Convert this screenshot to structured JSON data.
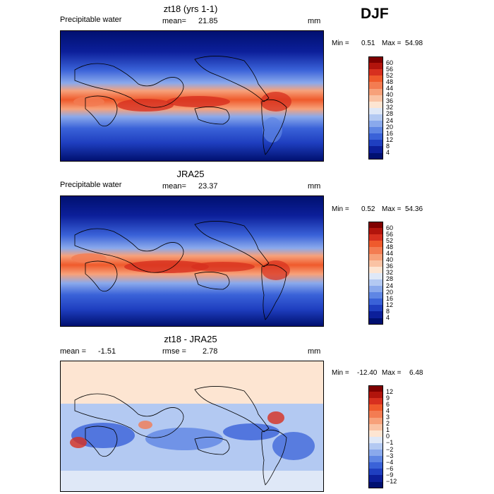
{
  "season": "DJF",
  "panels": [
    {
      "title": "zt18 (yrs 1-1)",
      "left_label": "Precipitable water",
      "mean_label": "mean=",
      "mean_value": "21.85",
      "units": "mm",
      "min_label": "Min =",
      "min_value": "0.51",
      "max_label": "Max =",
      "max_value": "54.98"
    },
    {
      "title": "JRA25",
      "left_label": "Precipitable water",
      "mean_label": "mean=",
      "mean_value": "23.37",
      "units": "mm",
      "min_label": "Min =",
      "min_value": "0.52",
      "max_label": "Max =",
      "max_value": "54.36"
    },
    {
      "title": "zt18 - JRA25",
      "left_label": "mean =",
      "left_value": "-1.51",
      "rmse_label": "rmse =",
      "rmse_value": "2.78",
      "units": "mm",
      "min_label": "Min =",
      "min_value": "-12.40",
      "max_label": "Max =",
      "max_value": "6.48"
    }
  ],
  "colorbars": {
    "pw": {
      "labels": [
        "60",
        "56",
        "52",
        "48",
        "44",
        "40",
        "36",
        "32",
        "28",
        "24",
        "20",
        "16",
        "12",
        "8",
        "4"
      ],
      "colors": [
        "#7f0000",
        "#b2140c",
        "#d7301f",
        "#ef5a2c",
        "#f37c52",
        "#f7a17a",
        "#fac3a4",
        "#fde5d2",
        "#dfe8f7",
        "#b3c9f2",
        "#8aa9ec",
        "#5f86e4",
        "#3a62d8",
        "#1f3fc0",
        "#0c1f9a",
        "#001070"
      ]
    },
    "diff": {
      "labels": [
        "12",
        "9",
        "6",
        "4",
        "3",
        "2",
        "1",
        "0",
        "−1",
        "−2",
        "−3",
        "−4",
        "−6",
        "−9",
        "−12"
      ],
      "colors": [
        "#7f0000",
        "#b2140c",
        "#d7301f",
        "#ef5a2c",
        "#f37c52",
        "#f7a17a",
        "#fac3a4",
        "#fde5d2",
        "#dfe8f7",
        "#b3c9f2",
        "#8aa9ec",
        "#5f86e4",
        "#3a62d8",
        "#1f3fc0",
        "#0c1f9a",
        "#001070"
      ]
    }
  },
  "chart_data": [
    {
      "type": "heatmap",
      "title": "zt18 (yrs 1-1)",
      "subtitle": "Precipitable water",
      "units": "mm",
      "mean": 21.85,
      "min": 0.51,
      "max": 54.98,
      "levels": [
        4,
        8,
        12,
        16,
        20,
        24,
        28,
        32,
        36,
        40,
        44,
        48,
        52,
        56,
        60
      ],
      "season": "DJF"
    },
    {
      "type": "heatmap",
      "title": "JRA25",
      "subtitle": "Precipitable water",
      "units": "mm",
      "mean": 23.37,
      "min": 0.52,
      "max": 54.36,
      "levels": [
        4,
        8,
        12,
        16,
        20,
        24,
        28,
        32,
        36,
        40,
        44,
        48,
        52,
        56,
        60
      ],
      "season": "DJF"
    },
    {
      "type": "heatmap",
      "title": "zt18 - JRA25",
      "units": "mm",
      "mean": -1.51,
      "rmse": 2.78,
      "min": -12.4,
      "max": 6.48,
      "levels": [
        -12,
        -9,
        -6,
        -4,
        -3,
        -2,
        -1,
        0,
        1,
        2,
        3,
        4,
        6,
        9,
        12
      ],
      "season": "DJF"
    }
  ]
}
